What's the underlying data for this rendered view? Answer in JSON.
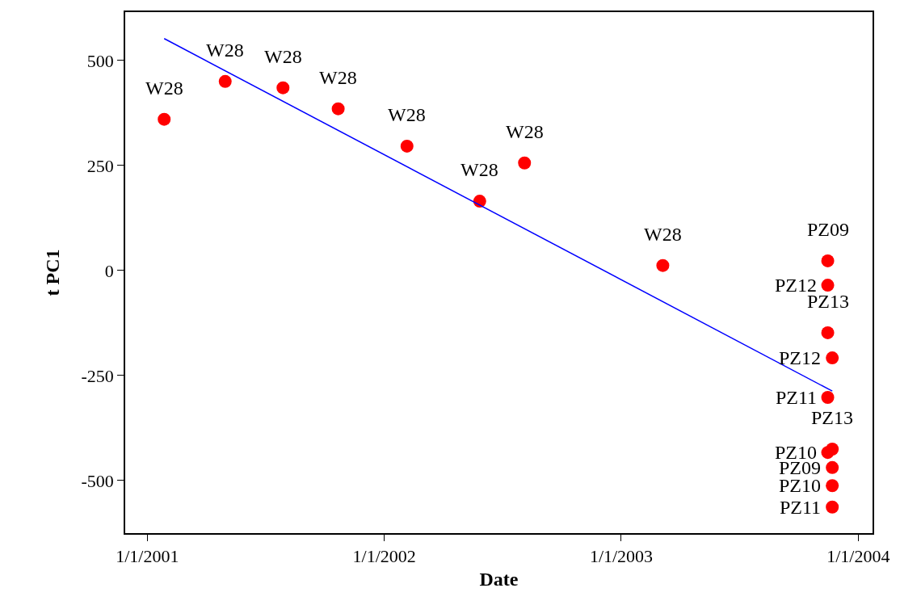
{
  "chart_data": {
    "type": "scatter",
    "xlabel": "Date",
    "ylabel": "t PC1",
    "series": [
      {
        "type": "scatter",
        "color": "#ff0000",
        "marker": "circle",
        "x": [
          "2001-01-27",
          "2001-05-01",
          "2001-07-29",
          "2001-10-22",
          "2002-02-05",
          "2002-05-28",
          "2002-08-05",
          "2003-03-06",
          "2003-11-15",
          "2003-11-15",
          "2003-11-15",
          "2003-11-22",
          "2003-11-15",
          "2003-11-22",
          "2003-11-15",
          "2003-11-22",
          "2003-11-22",
          "2003-11-22"
        ],
        "values": [
          360,
          450,
          435,
          385,
          296,
          165,
          256,
          12,
          23,
          -35,
          -148,
          -208,
          -302,
          -425,
          -433,
          -469,
          -512,
          -563
        ]
      },
      {
        "type": "line",
        "color": "#0000ff",
        "x": [
          "2001-01-27",
          "2003-11-22"
        ],
        "values": [
          552,
          -287
        ]
      }
    ],
    "annotations": [
      {
        "text": "W28",
        "x": "2001-01-27",
        "y": 360
      },
      {
        "text": "W28",
        "x": "2001-05-01",
        "y": 450
      },
      {
        "text": "W28",
        "x": "2001-07-29",
        "y": 435
      },
      {
        "text": "W28",
        "x": "2001-10-22",
        "y": 385
      },
      {
        "text": "W28",
        "x": "2002-02-05",
        "y": 296
      },
      {
        "text": "W28",
        "x": "2002-05-28",
        "y": 165
      },
      {
        "text": "W28",
        "x": "2002-08-05",
        "y": 256
      },
      {
        "text": "W28",
        "x": "2003-03-06",
        "y": 12
      },
      {
        "text": "PZ09",
        "x": "2003-11-15",
        "y": 23
      },
      {
        "text": "PZ12",
        "x": "2003-11-15",
        "y": -35
      },
      {
        "text": "PZ13",
        "x": "2003-11-15",
        "y": -148
      },
      {
        "text": "PZ12",
        "x": "2003-11-22",
        "y": -208
      },
      {
        "text": "PZ11",
        "x": "2003-11-15",
        "y": -302
      },
      {
        "text": "PZ13",
        "x": "2003-11-22",
        "y": -425
      },
      {
        "text": "PZ10",
        "x": "2003-11-15",
        "y": -433
      },
      {
        "text": "PZ09",
        "x": "2003-11-22",
        "y": -469
      },
      {
        "text": "PZ10",
        "x": "2003-11-22",
        "y": -512
      },
      {
        "text": "PZ11",
        "x": "2003-11-22",
        "y": -563
      }
    ],
    "xlim": [
      "2000-11-28",
      "2004-01-23"
    ],
    "xticks": [
      {
        "value": "2001-01-01",
        "label": "1/1/2001"
      },
      {
        "value": "2002-01-01",
        "label": "1/1/2002"
      },
      {
        "value": "2003-01-01",
        "label": "1/1/2003"
      },
      {
        "value": "2004-01-01",
        "label": "1/1/2004"
      }
    ],
    "ylim": [
      -625,
      615
    ],
    "yticks": [
      {
        "value": -500,
        "label": "-500"
      },
      {
        "value": -250,
        "label": "-250"
      },
      0,
      250,
      500
    ],
    "grid": false
  }
}
